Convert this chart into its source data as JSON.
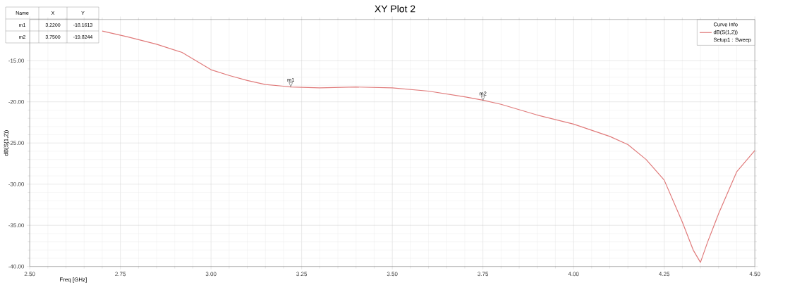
{
  "chart_data": {
    "type": "line",
    "title": "XY Plot 2",
    "xlabel": "Freq [GHz]",
    "ylabel": "dB(S(1,2))",
    "legend_title": "Curve Info",
    "x": [
      2.7,
      2.77,
      2.85,
      2.92,
      3.0,
      3.05,
      3.1,
      3.15,
      3.2,
      3.22,
      3.3,
      3.4,
      3.5,
      3.6,
      3.7,
      3.75,
      3.8,
      3.9,
      4.0,
      4.1,
      4.15,
      4.2,
      4.25,
      4.3,
      4.33,
      4.35,
      4.37,
      4.4,
      4.45,
      4.5
    ],
    "series": [
      {
        "name": "dB(S(1,2))",
        "color": "#e07a7a",
        "values": [
          -11.4,
          -12.1,
          -13.0,
          -14.0,
          -16.1,
          -16.8,
          -17.4,
          -17.9,
          -18.1,
          -18.2,
          -18.3,
          -18.2,
          -18.3,
          -18.7,
          -19.4,
          -19.8,
          -20.3,
          -21.6,
          -22.7,
          -24.2,
          -25.2,
          -27.0,
          -29.5,
          -34.6,
          -38.0,
          -39.5,
          -37.0,
          -33.6,
          -28.5,
          -25.9
        ]
      }
    ],
    "xlim": [
      2.5,
      4.5
    ],
    "ylim": [
      -40,
      -10
    ],
    "xticks": [
      {
        "value": 2.5,
        "label": "2.50"
      },
      {
        "value": 2.75,
        "label": "2.75"
      },
      {
        "value": 3.0,
        "label": "3.00"
      },
      {
        "value": 3.25,
        "label": "3.25"
      },
      {
        "value": 3.5,
        "label": "3.50"
      },
      {
        "value": 3.75,
        "label": "3.75"
      },
      {
        "value": 4.0,
        "label": "4.00"
      },
      {
        "value": 4.25,
        "label": "4.25"
      },
      {
        "value": 4.5,
        "label": "4.50"
      }
    ],
    "yticks": [
      {
        "value": -40,
        "label": "-40.00"
      },
      {
        "value": -35,
        "label": "-35.00"
      },
      {
        "value": -30,
        "label": "-30.00"
      },
      {
        "value": -25,
        "label": "-25.00"
      },
      {
        "value": -20,
        "label": "-20.00"
      },
      {
        "value": -15,
        "label": "-15.00"
      }
    ],
    "grid": true,
    "legend": "top right",
    "marker": "none",
    "line_style": "solid",
    "annotations": [
      {
        "text": "m1",
        "x": 3.22,
        "y": -18.1613
      },
      {
        "text": "m2",
        "x": 3.75,
        "y": -19.8244
      },
      "Name",
      "X",
      "Y",
      "3.2200",
      "-18.1613",
      "3.7500",
      "-19.8244",
      "Setup1 : Sweep"
    ]
  }
}
